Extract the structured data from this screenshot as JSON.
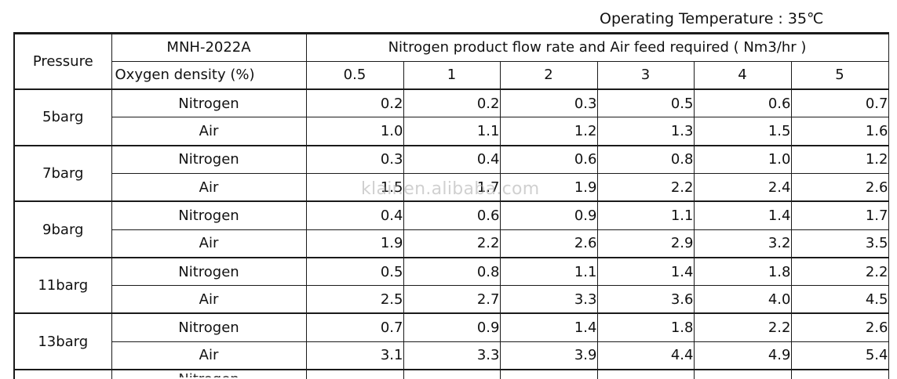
{
  "operating_temperature": "Operating Temperature : 35℃",
  "table": {
    "pressure_header": "Pressure",
    "model": "MNH-2022A",
    "flow_header": "Nitrogen product flow rate and Air feed required ( Nm3/hr )",
    "oxygen_header": "Oxygen density (%)",
    "oxygen_levels": [
      "0.5",
      "1",
      "2",
      "3",
      "4",
      "5"
    ],
    "groups": [
      {
        "pressure": "5barg",
        "rows": [
          {
            "label": "Nitrogen",
            "values": [
              "0.2",
              "0.2",
              "0.3",
              "0.5",
              "0.6",
              "0.7"
            ]
          },
          {
            "label": "Air",
            "values": [
              "1.0",
              "1.1",
              "1.2",
              "1.3",
              "1.5",
              "1.6"
            ]
          }
        ]
      },
      {
        "pressure": "7barg",
        "rows": [
          {
            "label": "Nitrogen",
            "values": [
              "0.3",
              "0.4",
              "0.6",
              "0.8",
              "1.0",
              "1.2"
            ]
          },
          {
            "label": "Air",
            "values": [
              "1.5",
              "1.7",
              "1.9",
              "2.2",
              "2.4",
              "2.6"
            ]
          }
        ]
      },
      {
        "pressure": "9barg",
        "rows": [
          {
            "label": "Nitrogen",
            "values": [
              "0.4",
              "0.6",
              "0.9",
              "1.1",
              "1.4",
              "1.7"
            ]
          },
          {
            "label": "Air",
            "values": [
              "1.9",
              "2.2",
              "2.6",
              "2.9",
              "3.2",
              "3.5"
            ]
          }
        ]
      },
      {
        "pressure": "11barg",
        "rows": [
          {
            "label": "Nitrogen",
            "values": [
              "0.5",
              "0.8",
              "1.1",
              "1.4",
              "1.8",
              "2.2"
            ]
          },
          {
            "label": "Air",
            "values": [
              "2.5",
              "2.7",
              "3.3",
              "3.6",
              "4.0",
              "4.5"
            ]
          }
        ]
      },
      {
        "pressure": "13barg",
        "rows": [
          {
            "label": "Nitrogen",
            "values": [
              "0.7",
              "0.9",
              "1.4",
              "1.8",
              "2.2",
              "2.6"
            ]
          },
          {
            "label": "Air",
            "values": [
              "3.1",
              "3.3",
              "3.9",
              "4.4",
              "4.9",
              "5.4"
            ]
          }
        ]
      }
    ],
    "partial_row_label": "Nitrogen"
  },
  "watermark": "klair.en.alibaba.com"
}
